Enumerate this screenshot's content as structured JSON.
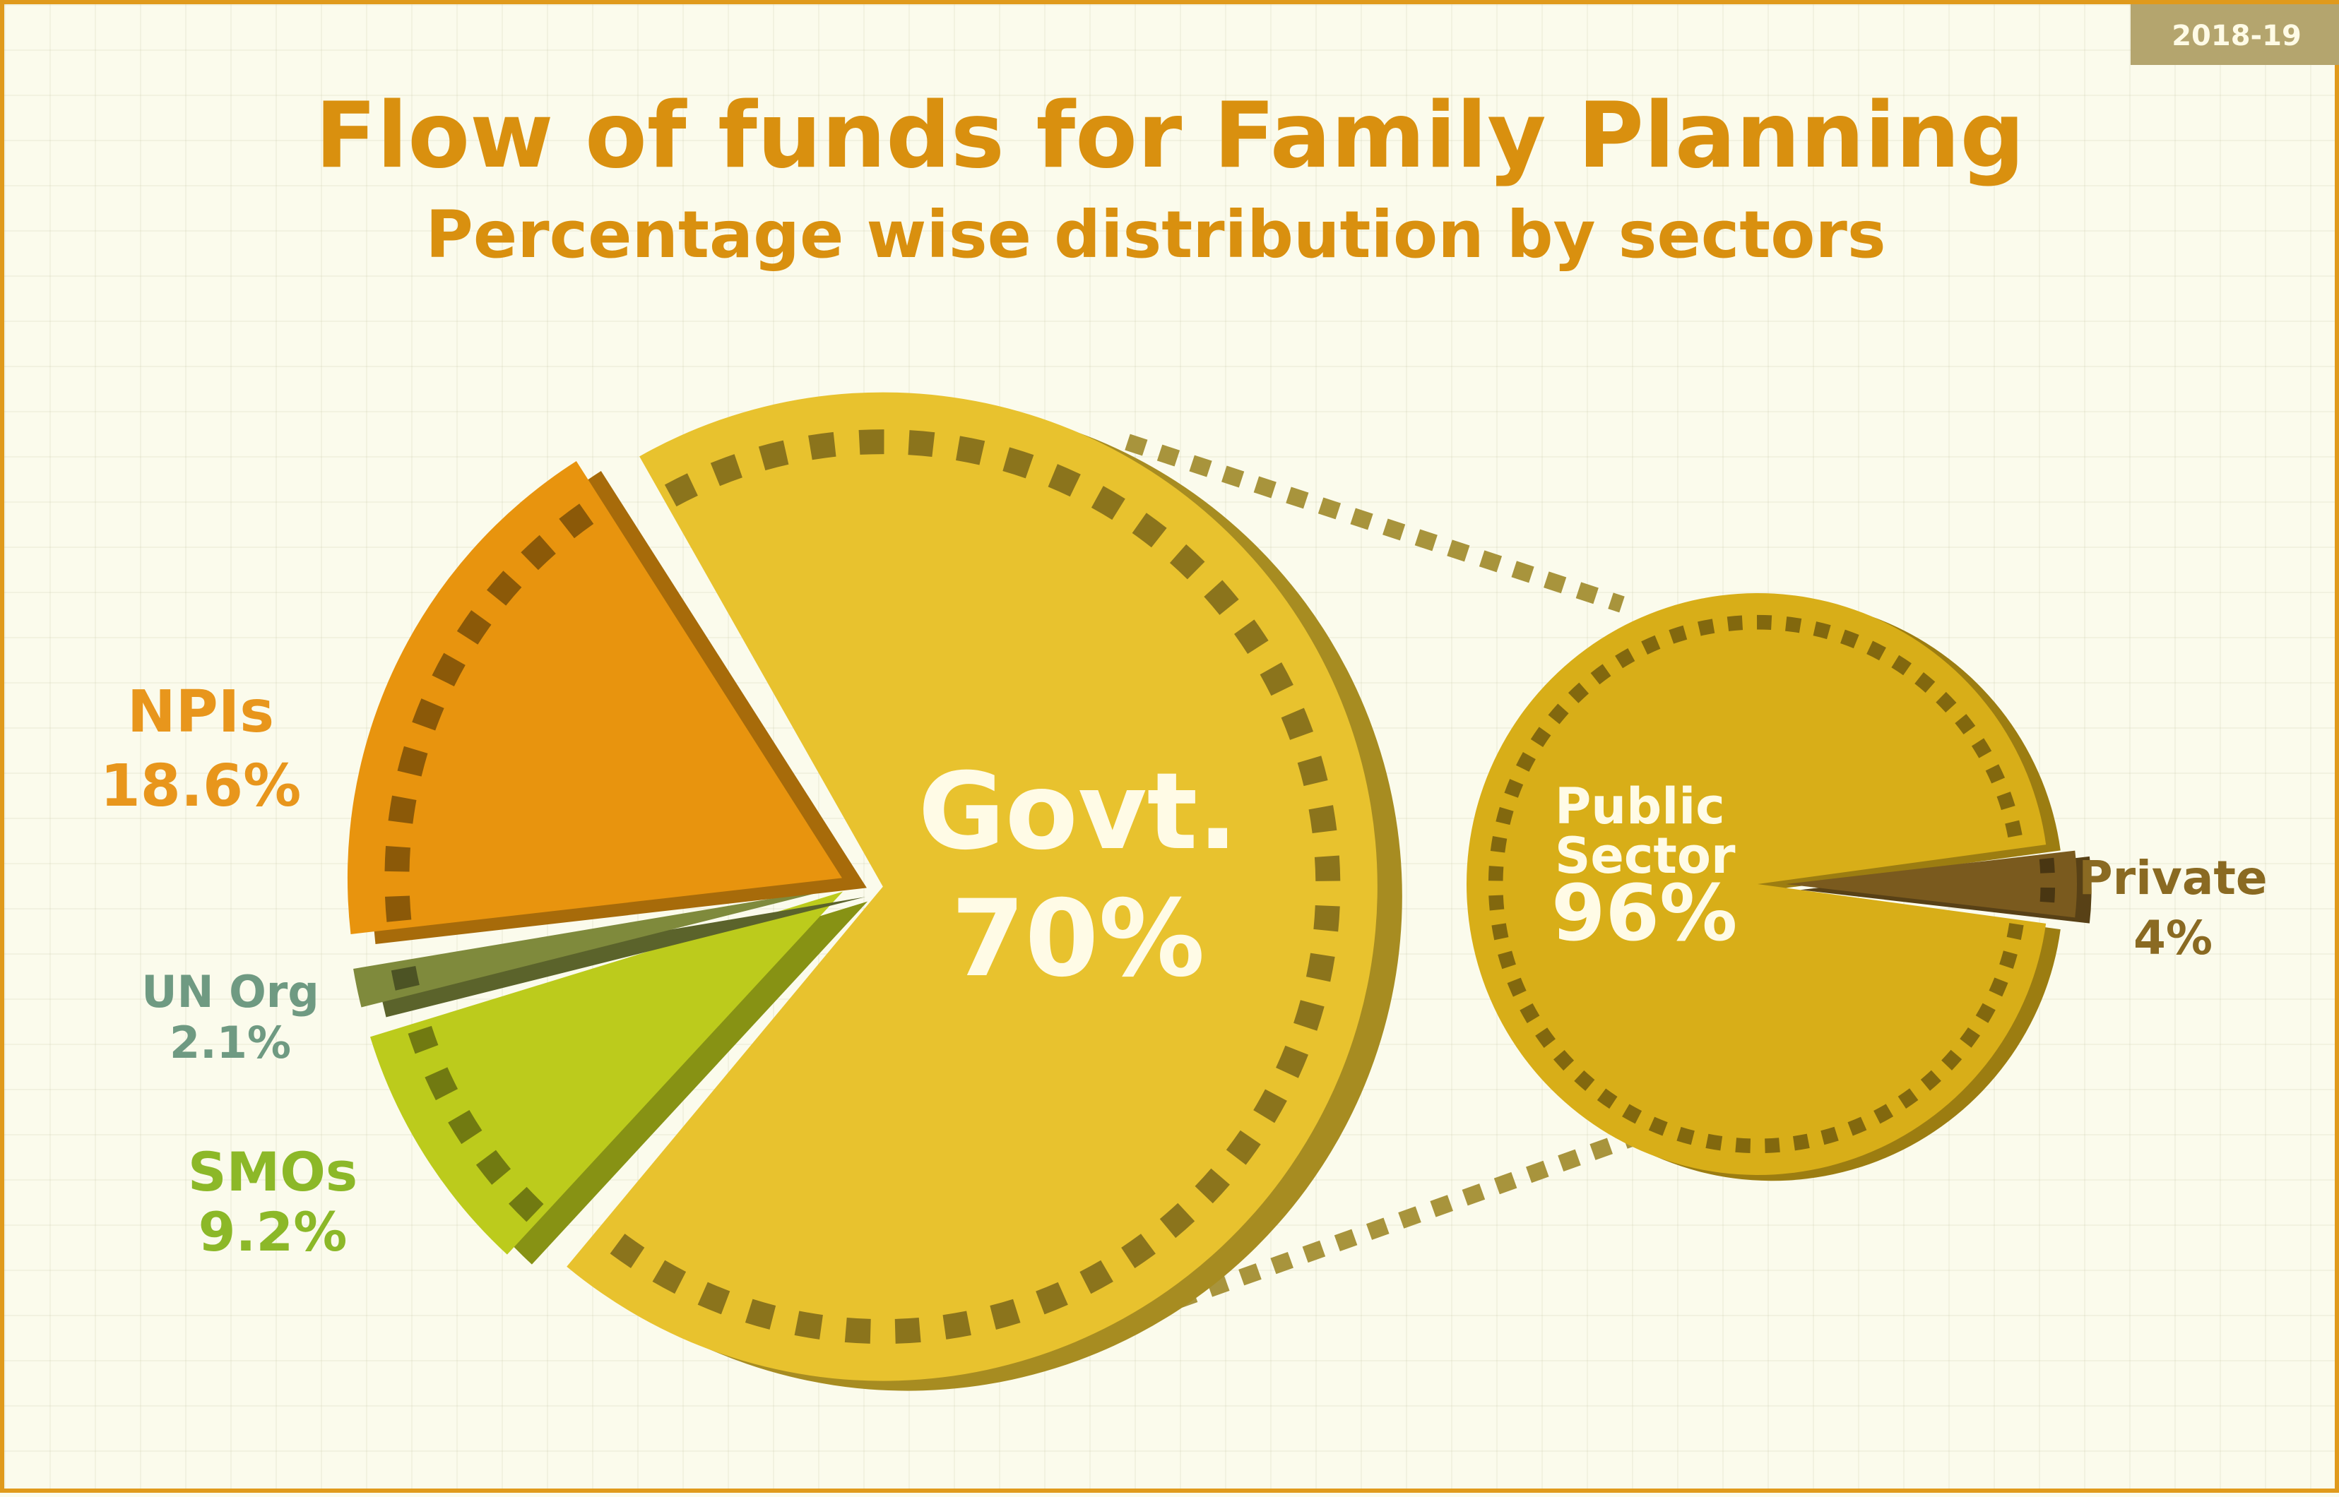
{
  "badge": "2018-19",
  "chart_data": [
    {
      "type": "pie",
      "title": "Flow of funds for Family Planning",
      "subtitle": "Percentage wise distribution by sectors",
      "slices": [
        {
          "name": "Govt.",
          "value": 70,
          "label": "70%",
          "color": "#e8c22e"
        },
        {
          "name": "SMOs",
          "value": 9.2,
          "label": "9.2%",
          "color": "#bccb1c"
        },
        {
          "name": "UN Org",
          "value": 2.1,
          "label": "2.1%",
          "color": "#7f8a3c"
        },
        {
          "name": "NPIs",
          "value": 18.6,
          "label": "18.6%",
          "color": "#e8940e"
        }
      ],
      "label_colors": {
        "Govt.": "#fffbe6",
        "SMOs": "#8cb828",
        "UN Org": "#6f9a82",
        "NPIs": "#e8961c"
      }
    },
    {
      "type": "pie",
      "breakdown_of": "Govt.",
      "slices": [
        {
          "name": "Public Sector",
          "value": 96,
          "label": "96%",
          "color": "#d8ae18"
        },
        {
          "name": "Private",
          "value": 4,
          "label": "4%",
          "color": "#7a5a1e"
        }
      ],
      "label_colors": {
        "Public Sector": "#fffbe6",
        "Private": "#8a6a22"
      }
    }
  ],
  "colors": {
    "title": "#d9900f",
    "border": "#e09a1c",
    "rim": "#a8943c",
    "badge_bg": "#b4a56e"
  }
}
